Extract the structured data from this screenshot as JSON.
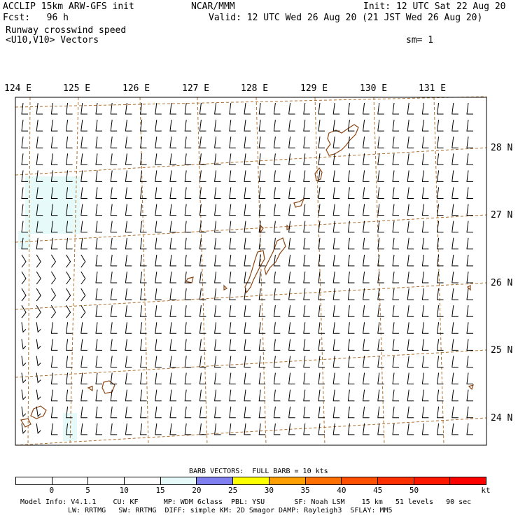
{
  "header": {
    "model_title": "ACCLIP 15km ARW-GFS init",
    "center": "NCAR/MMM",
    "init": "Init: 12 UTC Sat 22 Aug 20",
    "fcst_label": "Fcst:   96 h",
    "valid": "Valid: 12 UTC Wed 26 Aug 20 (21 JST Wed 26 Aug 20)",
    "field_name": "Runway crosswind speed",
    "vectors": "<U10,V10> Vectors",
    "smoothing": "sm= 1"
  },
  "map": {
    "lon_labels": [
      "124 E",
      "125 E",
      "126 E",
      "127 E",
      "128 E",
      "129 E",
      "130 E",
      "131 E"
    ],
    "lat_labels": [
      "28 N",
      "27 N",
      "26 N",
      "25 N",
      "24 N"
    ],
    "colors": {
      "grid": "#b07030",
      "coast": "#8b4513",
      "barb": "#000000",
      "shade": "#e6fafa"
    }
  },
  "legend": {
    "barb_note": "BARB VECTORS:  FULL BARB = 10 kts",
    "unit": "kt",
    "ticks": [
      "0",
      "5",
      "10",
      "15",
      "20",
      "25",
      "30",
      "35",
      "40",
      "45",
      "50"
    ],
    "colors": [
      "#ffffff",
      "#ffffff",
      "#ffffff",
      "#ffffff",
      "#e6fafa",
      "#8080f0",
      "#ffff00",
      "#ffa000",
      "#ff7000",
      "#ff5000",
      "#ff3000",
      "#ff1800",
      "#ff0000"
    ]
  },
  "footer": {
    "line1": "Model Info: V4.1.1    CU: KF      MP: WDM 6class  PBL: YSU       SF: Noah LSM    15 km   51 levels   90 sec",
    "line2": "LW: RRTMG   SW: RRTMG  DIFF: simple KM: 2D Smagor DAMP: Rayleigh3  SFLAY: MM5"
  }
}
